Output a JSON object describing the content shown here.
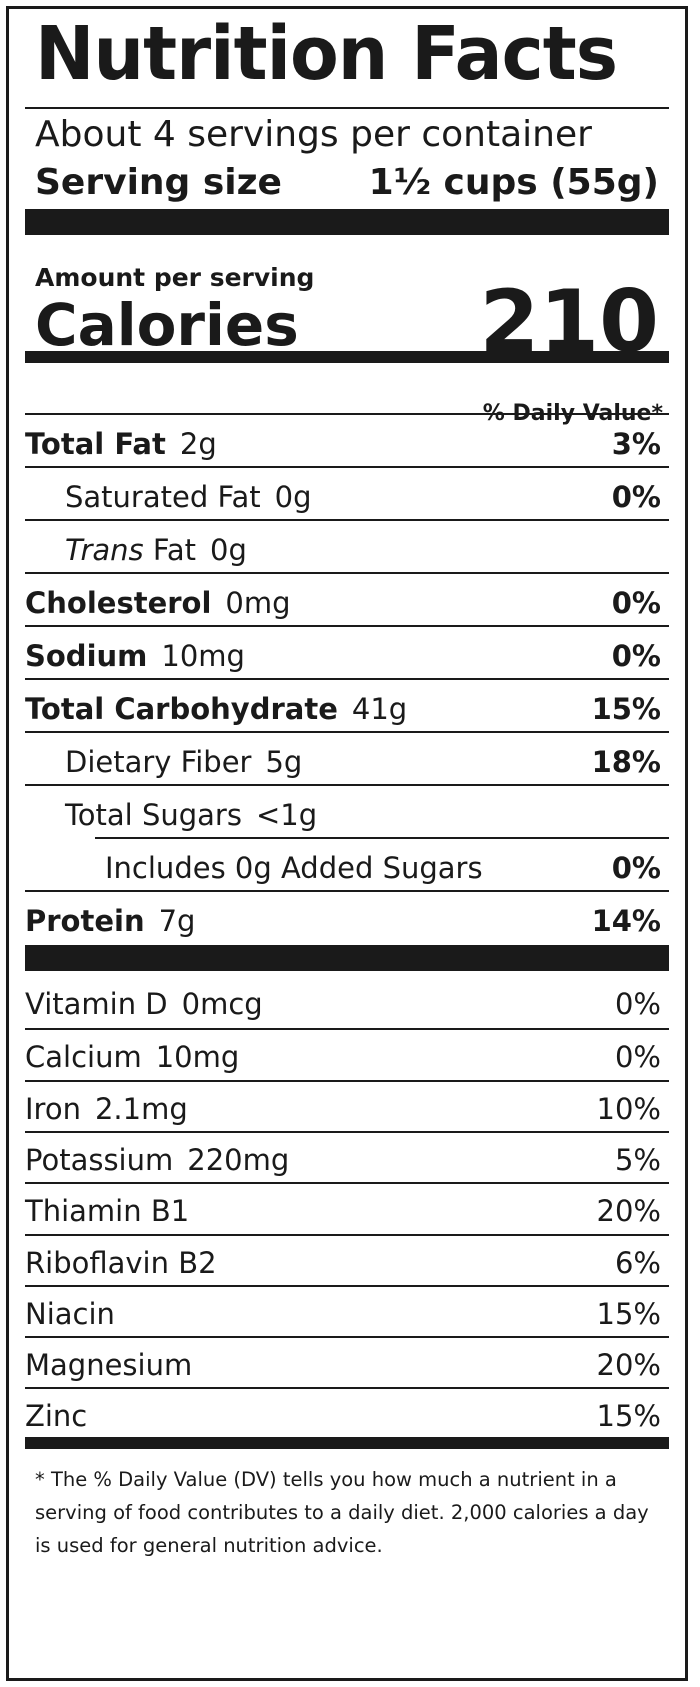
{
  "title": "Nutrition Facts",
  "servings_per_container": "About 4 servings per container",
  "serving_size_label": "Serving size",
  "serving_size_value": "1½ cups (55g)",
  "amount_per_serving": "Amount per serving",
  "calories_label": "Calories",
  "calories_value": "210",
  "daily_value_header": "% Daily Value*",
  "nutrients": [
    {
      "name": "Total Fat",
      "amount": "2g",
      "dv": "3%"
    },
    {
      "name": "Saturated Fat",
      "amount": "0g",
      "dv": "0%"
    },
    {
      "name_italic": "Trans",
      "name": "Fat",
      "amount": "0g",
      "dv": ""
    },
    {
      "name": "Cholesterol",
      "amount": "0mg",
      "dv": "0%"
    },
    {
      "name": "Sodium",
      "amount": "10mg",
      "dv": "0%"
    },
    {
      "name": "Total Carbohydrate",
      "amount": "41g",
      "dv": "15%"
    },
    {
      "name": "Dietary Fiber",
      "amount": "5g",
      "dv": "18%"
    },
    {
      "name": "Total Sugars",
      "amount": "<1g",
      "dv": ""
    },
    {
      "name": "Includes 0g Added Sugars",
      "amount": "",
      "dv": "0%"
    },
    {
      "name": "Protein",
      "amount": "7g",
      "dv": "14%"
    }
  ],
  "vitamins": [
    {
      "name": "Vitamin D",
      "amount": "0mcg",
      "dv": "0%"
    },
    {
      "name": "Calcium",
      "amount": "10mg",
      "dv": "0%"
    },
    {
      "name": "Iron",
      "amount": "2.1mg",
      "dv": "10%"
    },
    {
      "name": "Potassium",
      "amount": "220mg",
      "dv": "5%"
    },
    {
      "name": "Thiamin B1",
      "amount": "",
      "dv": "20%"
    },
    {
      "name": "Riboflavin B2",
      "amount": "",
      "dv": "6%"
    },
    {
      "name": "Niacin",
      "amount": "",
      "dv": "15%"
    },
    {
      "name": "Magnesium",
      "amount": "",
      "dv": "20%"
    },
    {
      "name": "Zinc",
      "amount": "",
      "dv": "15%"
    }
  ],
  "footnote": "* The % Daily Value (DV) tells you how much a nutrient in a serving of food contributes to a daily diet. 2,000 calories a day is used for general nutrition advice."
}
